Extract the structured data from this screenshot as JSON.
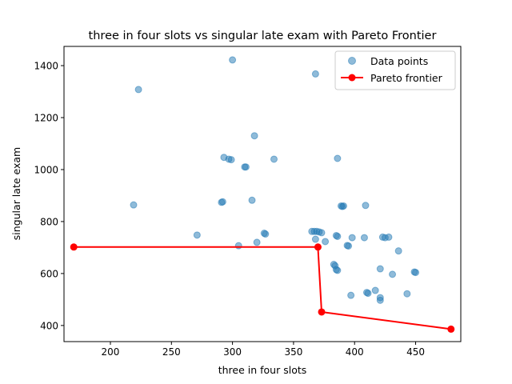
{
  "chart_data": {
    "type": "scatter",
    "title": "three in four slots vs singular late exam with Pareto Frontier",
    "xlabel": "three in four slots",
    "ylabel": "singular late exam",
    "xlim": [
      162,
      487
    ],
    "ylim": [
      338,
      1474
    ],
    "xticks": [
      200,
      250,
      300,
      350,
      400,
      450
    ],
    "yticks": [
      400,
      600,
      800,
      1000,
      1200,
      1400
    ],
    "grid": false,
    "legend_position": "top-right",
    "colors": {
      "points": "#1f77b4",
      "frontier": "#ff0000"
    },
    "series": [
      {
        "name": "Data points",
        "kind": "scatter",
        "points": [
          [
            300,
            1422
          ],
          [
            223,
            1308
          ],
          [
            368,
            1368
          ],
          [
            318,
            1130
          ],
          [
            293,
            1047
          ],
          [
            297,
            1040
          ],
          [
            299,
            1038
          ],
          [
            334,
            1040
          ],
          [
            310,
            1010
          ],
          [
            311,
            1010
          ],
          [
            386,
            1043
          ],
          [
            389,
            860
          ],
          [
            390,
            858
          ],
          [
            391,
            860
          ],
          [
            409,
            862
          ],
          [
            219,
            864
          ],
          [
            291,
            874
          ],
          [
            292,
            876
          ],
          [
            316,
            882
          ],
          [
            365,
            762
          ],
          [
            367,
            762
          ],
          [
            369,
            762
          ],
          [
            371,
            760
          ],
          [
            373,
            757
          ],
          [
            326,
            755
          ],
          [
            327,
            752
          ],
          [
            271,
            748
          ],
          [
            385,
            746
          ],
          [
            386,
            743
          ],
          [
            398,
            738
          ],
          [
            408,
            738
          ],
          [
            368,
            732
          ],
          [
            376,
            723
          ],
          [
            320,
            720
          ],
          [
            305,
            707
          ],
          [
            394,
            708
          ],
          [
            395,
            706
          ],
          [
            423,
            740
          ],
          [
            425,
            738
          ],
          [
            428,
            740
          ],
          [
            436,
            687
          ],
          [
            383,
            635
          ],
          [
            384,
            630
          ],
          [
            385,
            615
          ],
          [
            386,
            612
          ],
          [
            421,
            618
          ],
          [
            431,
            597
          ],
          [
            449,
            606
          ],
          [
            450,
            604
          ],
          [
            410,
            527
          ],
          [
            411,
            524
          ],
          [
            417,
            535
          ],
          [
            421,
            507
          ],
          [
            421,
            497
          ],
          [
            397,
            516
          ],
          [
            443,
            522
          ]
        ]
      },
      {
        "name": "Pareto frontier",
        "kind": "line",
        "points": [
          [
            170,
            702
          ],
          [
            370,
            702
          ],
          [
            373,
            452
          ],
          [
            479,
            386
          ]
        ]
      }
    ]
  }
}
